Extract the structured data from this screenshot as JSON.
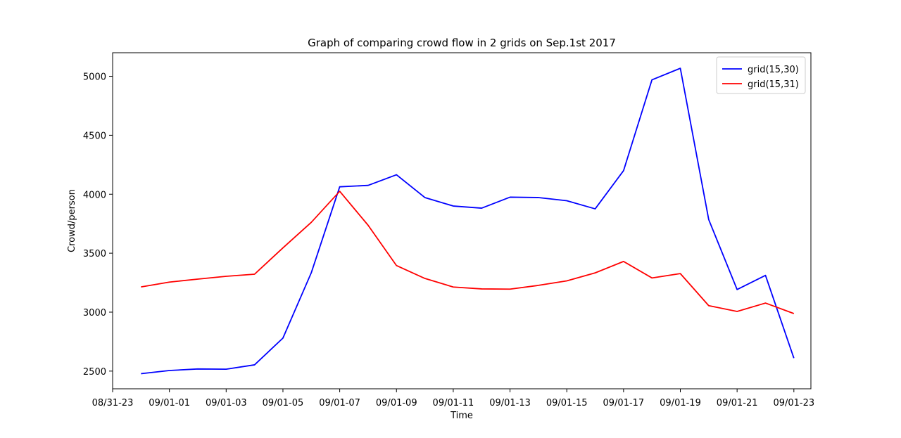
{
  "chart_data": {
    "type": "line",
    "title": "Graph of comparing crowd flow in 2 grids on Sep.1st 2017",
    "xlabel": "Time",
    "ylabel": "Crowd/person",
    "x": [
      0,
      1,
      2,
      3,
      4,
      5,
      6,
      7,
      8,
      9,
      10,
      11,
      12,
      13,
      14,
      15,
      16,
      17,
      18,
      19,
      20,
      21,
      22,
      23
    ],
    "x_tick_labels": [
      "08/31-23",
      "09/01-01",
      "09/01-03",
      "09/01-05",
      "09/01-07",
      "09/01-09",
      "09/01-11",
      "09/01-13",
      "09/01-15",
      "09/01-17",
      "09/01-19",
      "09/01-21",
      "09/01-23"
    ],
    "y_ticks": [
      2500,
      3000,
      3500,
      4000,
      4500,
      5000
    ],
    "grid": false,
    "legend_position": "top-right",
    "series": [
      {
        "name": "grid(15,30)",
        "color": "#0000ff",
        "values": [
          2478,
          2505,
          2518,
          2516,
          2553,
          2780,
          3335,
          4063,
          4075,
          4165,
          3972,
          3900,
          3882,
          3975,
          3972,
          3945,
          3876,
          4200,
          4970,
          5068,
          3785,
          3192,
          3312,
          2610
        ]
      },
      {
        "name": "grid(15,31)",
        "color": "#ff0000",
        "values": [
          3214,
          3255,
          3280,
          3304,
          3322,
          3545,
          3762,
          4025,
          3737,
          3395,
          3286,
          3213,
          3197,
          3195,
          3227,
          3265,
          3333,
          3430,
          3290,
          3327,
          3055,
          3006,
          3077,
          2988
        ]
      }
    ]
  }
}
